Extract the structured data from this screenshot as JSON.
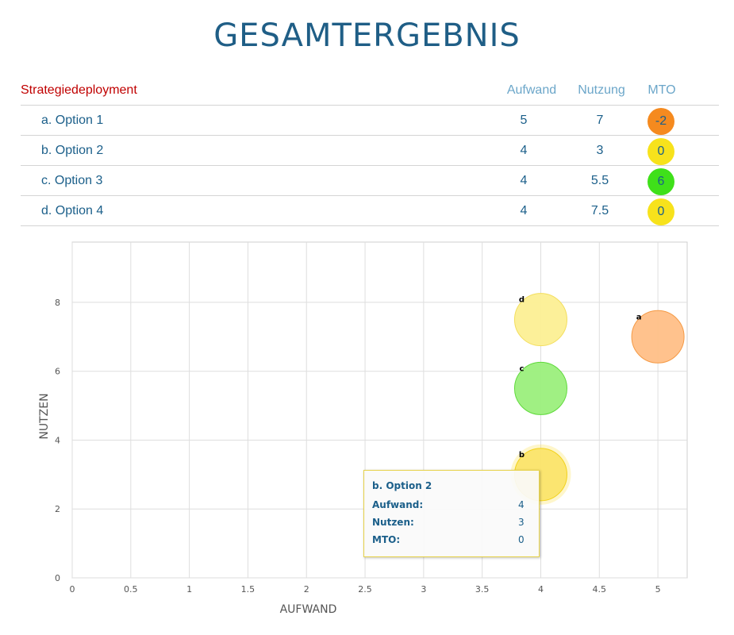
{
  "title": "GESAMTERGEBNIS",
  "table": {
    "section_label": "Strategiedeployment",
    "headers": {
      "aufwand": "Aufwand",
      "nutzung": "Nutzung",
      "mto": "MTO"
    },
    "rows": [
      {
        "label": "a. Option 1",
        "aufwand": "5",
        "nutzung": "7",
        "mto": "-2",
        "color": "#f58a1f"
      },
      {
        "label": "b. Option 2",
        "aufwand": "4",
        "nutzung": "3",
        "mto": "0",
        "color": "#f7e21c"
      },
      {
        "label": "c. Option 3",
        "aufwand": "4",
        "nutzung": "5.5",
        "mto": "6",
        "color": "#3fe01a"
      },
      {
        "label": "d. Option 4",
        "aufwand": "4",
        "nutzung": "7.5",
        "mto": "0",
        "color": "#f7e21c"
      }
    ]
  },
  "chart_data": {
    "type": "scatter",
    "xlabel": "AUFWAND",
    "ylabel": "NUTZEN",
    "xlim": [
      0,
      5.25
    ],
    "ylim": [
      0,
      9.75
    ],
    "xticks": [
      "0",
      "0.5",
      "1",
      "1.5",
      "2",
      "2.5",
      "3",
      "3.5",
      "4",
      "4.5",
      "5"
    ],
    "yticks": [
      "0",
      "2",
      "4",
      "6",
      "8"
    ],
    "grid": true,
    "points": [
      {
        "label": "a",
        "x": 5,
        "y": 7,
        "mto": -2,
        "fill": "#ffbf87",
        "stroke": "#f59a45"
      },
      {
        "label": "b",
        "x": 4,
        "y": 3,
        "mto": 0,
        "fill": "#fbe46a",
        "stroke": "#f2d21b"
      },
      {
        "label": "c",
        "x": 4,
        "y": 5.5,
        "mto": 6,
        "fill": "#9bef7c",
        "stroke": "#5ed93a"
      },
      {
        "label": "d",
        "x": 4,
        "y": 7.5,
        "mto": 0,
        "fill": "#fcef94",
        "stroke": "#f3de5d"
      }
    ],
    "tooltip": {
      "title": "b. Option 2",
      "rows": [
        {
          "key": "Aufwand:",
          "value": "4"
        },
        {
          "key": "Nutzen:",
          "value": "3"
        },
        {
          "key": "MTO:",
          "value": "0"
        }
      ]
    }
  }
}
